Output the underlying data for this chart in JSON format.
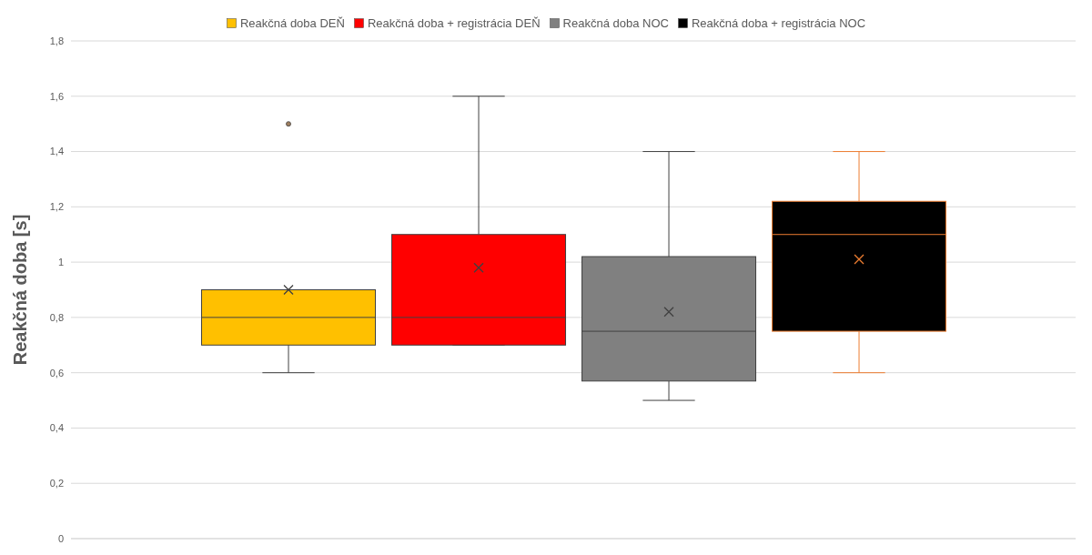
{
  "chart_data": {
    "type": "box",
    "ylabel": "Reakčná doba [s]",
    "categories": [
      null
    ],
    "legend": "top",
    "grid": "y",
    "ylim": [
      0,
      1.8
    ],
    "yticks": [
      {
        "value": 0,
        "label": "0"
      },
      {
        "value": 0.2,
        "label": "0,2"
      },
      {
        "value": 0.4,
        "label": "0,4"
      },
      {
        "value": 0.6,
        "label": "0,6"
      },
      {
        "value": 0.8,
        "label": "0,8"
      },
      {
        "value": 1,
        "label": "1"
      },
      {
        "value": 1.2,
        "label": "1,2"
      },
      {
        "value": 1.4,
        "label": "1,4"
      },
      {
        "value": 1.6,
        "label": "1,6"
      },
      {
        "value": 1.8,
        "label": "1,8"
      }
    ],
    "series": [
      {
        "name": "Reakčná doba DEŇ",
        "color": "#ffc000",
        "boxes": [
          {
            "low": 0.6,
            "q1": 0.7,
            "median": 0.8,
            "q3": 0.9,
            "high": 0.9,
            "mean": 0.9,
            "outliers": [
              1.5
            ]
          }
        ]
      },
      {
        "name": "Reakčná doba + registrácia DEŇ",
        "color": "#ff0000",
        "boxes": [
          {
            "low": 0.7,
            "q1": 0.7,
            "median": 0.8,
            "q3": 1.1,
            "high": 1.6,
            "mean": 0.98
          }
        ]
      },
      {
        "name": "Reakčná doba NOC",
        "color": "#808080",
        "boxes": [
          {
            "low": 0.5,
            "q1": 0.57,
            "median": 0.75,
            "q3": 1.02,
            "high": 1.4,
            "mean": 0.82
          }
        ]
      },
      {
        "name": "Reakčná doba + registrácia NOC",
        "color": "#000000",
        "boxes": [
          {
            "low": 0.6,
            "q1": 0.75,
            "median": 1.1,
            "q3": 1.22,
            "high": 1.4,
            "mean": 1.01
          }
        ]
      }
    ]
  }
}
